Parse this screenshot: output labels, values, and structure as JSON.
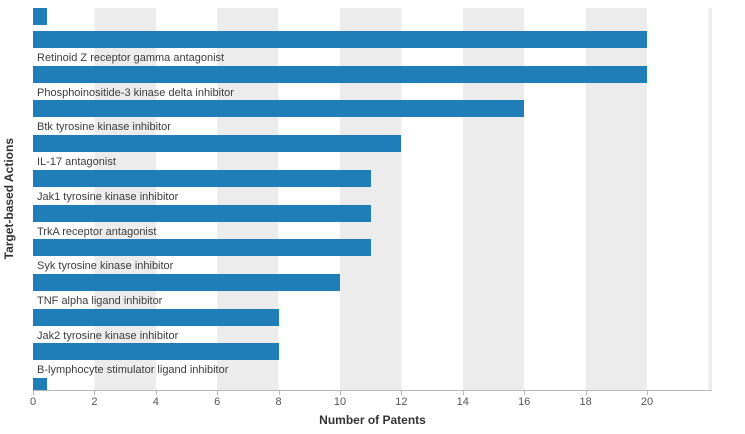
{
  "chart_data": {
    "type": "bar",
    "orientation": "horizontal",
    "title": "",
    "xlabel": "Number of Patents",
    "ylabel": "Target-based Actions",
    "categories": [
      "Retinoid Z receptor gamma antagonist",
      "Phosphoinositide-3 kinase delta inhibitor",
      "Btk tyrosine kinase inhibitor",
      "IL-17 antagonist",
      "Jak1 tyrosine kinase inhibitor",
      "TrkA receptor antagonist",
      "Syk tyrosine kinase inhibitor",
      "TNF alpha ligand inhibitor",
      "Jak2 tyrosine kinase inhibitor",
      "B-lymphocyte stimulator ligand inhibitor"
    ],
    "values": [
      20,
      20,
      16,
      12,
      11,
      11,
      11,
      10,
      8,
      8
    ],
    "xlim": [
      0,
      22
    ],
    "xticks": [
      0,
      2,
      4,
      6,
      8,
      10,
      12,
      14,
      16,
      18,
      20
    ],
    "grid": "alternating-vertical-bands",
    "legend": "none",
    "bar_color": "#1F7DB8",
    "stripe_color": "#ECECEC",
    "partial_bars_cut_off": {
      "top": true,
      "bottom": true
    }
  }
}
